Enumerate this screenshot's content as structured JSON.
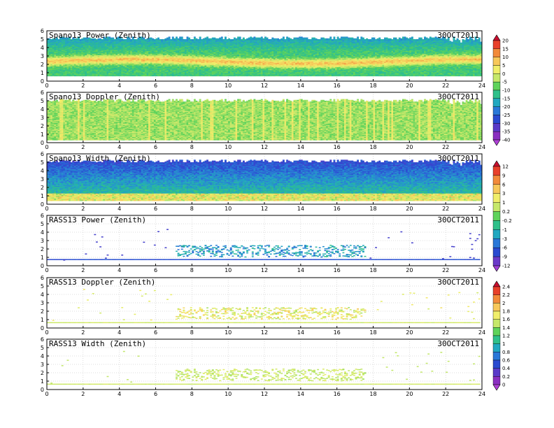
{
  "chart_data": [
    {
      "type": "heatmap",
      "title": "Spano13 Power (Zenith)",
      "date": "30OCT2011",
      "xlim": [
        0,
        24
      ],
      "ylim": [
        0,
        6
      ],
      "xticks": [
        0,
        2,
        4,
        6,
        8,
        10,
        12,
        14,
        16,
        18,
        20,
        22,
        24
      ],
      "yticks": [
        0,
        1,
        2,
        3,
        4,
        5,
        6
      ],
      "grid": true,
      "colorbar": "A",
      "field": {
        "kind": "power",
        "top_km": 5.3,
        "layer_km": 2.3,
        "floor_km": 0.6
      },
      "value_range": [
        -40,
        20
      ]
    },
    {
      "type": "heatmap",
      "title": "Spano13 Doppler (Zenith)",
      "date": "30OCT2011",
      "xlim": [
        0,
        24
      ],
      "ylim": [
        0,
        6
      ],
      "xticks": [
        0,
        2,
        4,
        6,
        8,
        10,
        12,
        14,
        16,
        18,
        20,
        22,
        24
      ],
      "yticks": [
        0,
        1,
        2,
        3,
        4,
        5,
        6
      ],
      "grid": true,
      "colorbar": "A",
      "field": {
        "kind": "doppler",
        "top_km": 5.2,
        "floor_km": 0.3
      }
    },
    {
      "type": "heatmap",
      "title": "Spano13 Width (Zenith)",
      "date": "30OCT2011",
      "xlim": [
        0,
        24
      ],
      "ylim": [
        0,
        6
      ],
      "xticks": [
        0,
        2,
        4,
        6,
        8,
        10,
        12,
        14,
        16,
        18,
        20,
        22,
        24
      ],
      "yticks": [
        0,
        1,
        2,
        3,
        4,
        5,
        6
      ],
      "grid": true,
      "colorbar": "B",
      "field": {
        "kind": "width",
        "top_km": 5.3,
        "floor_km": 0.4
      }
    },
    {
      "type": "scatter",
      "title": "RASS13 Power (Zenith)",
      "date": "30OCT2011",
      "xlim": [
        0,
        24
      ],
      "ylim": [
        0,
        6
      ],
      "xticks": [
        0,
        2,
        4,
        6,
        8,
        10,
        12,
        14,
        16,
        18,
        20,
        22,
        24
      ],
      "yticks": [
        0,
        1,
        2,
        3,
        4,
        5,
        6
      ],
      "grid": true,
      "colorbar": "B",
      "field": {
        "kind": "rass_power",
        "baseline_km": 0.7,
        "active_hours": [
          7,
          17.5
        ]
      }
    },
    {
      "type": "scatter",
      "title": "RASS13 Doppler (Zenith)",
      "date": "30OCT2011",
      "xlim": [
        0,
        24
      ],
      "ylim": [
        0,
        6
      ],
      "xticks": [
        0,
        2,
        4,
        6,
        8,
        10,
        12,
        14,
        16,
        18,
        20,
        22,
        24
      ],
      "yticks": [
        0,
        1,
        2,
        3,
        4,
        5,
        6
      ],
      "grid": true,
      "colorbar": "C",
      "field": {
        "kind": "rass_doppler",
        "baseline_km": 0.6,
        "active_hours": [
          7,
          17.5
        ]
      }
    },
    {
      "type": "scatter",
      "title": "RASS13 Width (Zenith)",
      "date": "30OCT2011",
      "xlim": [
        0,
        24
      ],
      "ylim": [
        0,
        6
      ],
      "xticks": [
        0,
        2,
        4,
        6,
        8,
        10,
        12,
        14,
        16,
        18,
        20,
        22,
        24
      ],
      "yticks": [
        0,
        1,
        2,
        3,
        4,
        5,
        6
      ],
      "grid": true,
      "colorbar": "C",
      "field": {
        "kind": "rass_width",
        "baseline_km": 0.6,
        "active_hours": [
          7,
          17.5
        ]
      }
    }
  ],
  "colorbars": {
    "A": {
      "labels": [
        "20",
        "15",
        "10",
        "5",
        "0",
        "-5",
        "-10",
        "-15",
        "-20",
        "-25",
        "-30",
        "-35",
        "-40"
      ],
      "colors": [
        "#c8102e",
        "#e8402a",
        "#f28a3a",
        "#f7c85a",
        "#f0ee6a",
        "#c6e86a",
        "#5fd35a",
        "#2fc08a",
        "#22a8c0",
        "#2a78d8",
        "#2a4ad0",
        "#5a3ac8",
        "#8a2fc0",
        "#b040d8"
      ]
    },
    "B": {
      "labels": [
        "12",
        "9",
        "6",
        "3",
        "1",
        "0.2",
        "-0.2",
        "-1",
        "-3",
        "-6",
        "-9",
        "-12"
      ],
      "colors": [
        "#c8102e",
        "#e8402a",
        "#f28a3a",
        "#f7c85a",
        "#f0ee6a",
        "#c6e86a",
        "#5fd35a",
        "#2fc08a",
        "#22a8c0",
        "#2a78d8",
        "#2a4ad0",
        "#6a3ac8",
        "#a040d8"
      ]
    },
    "C": {
      "labels": [
        "2.4",
        "2.2",
        "2",
        "1.8",
        "1.6",
        "1.4",
        "1.2",
        "1",
        "0.8",
        "0.6",
        "0.4",
        "0.2",
        "0"
      ],
      "colors": [
        "#c8102e",
        "#e8402a",
        "#f28a3a",
        "#f7c85a",
        "#f0ee6a",
        "#c6e86a",
        "#5fd35a",
        "#2fc08a",
        "#22a8c0",
        "#2a78d8",
        "#2a4ad0",
        "#5a3ac8",
        "#8a2fc0",
        "#b040d8"
      ]
    }
  }
}
